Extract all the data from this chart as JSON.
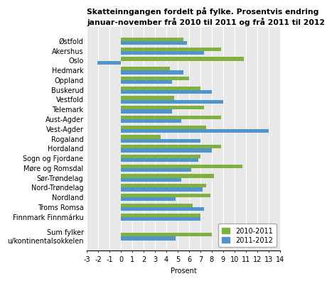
{
  "title": "Skatteinngangen fordelt på fylke. Prosentvis endring\njanuar-november frå 2010 til 2011 og frå 2011 til 2012",
  "categories": [
    "Østfold",
    "Akershus",
    "Oslo",
    "Hedmark",
    "Oppland",
    "Buskerud",
    "Vestfold",
    "Telemark",
    "Aust-Agder",
    "Vest-Agder",
    "Rogaland",
    "Hordaland",
    "Sogn og Fjordane",
    "Møre og Romsdal",
    "Sør-Trøndelag",
    "Nord-Trøndelag",
    "Nordland",
    "Troms Romsa",
    "Finnmark Finnmárku",
    "",
    "Sum fylker\nu/kontinentalsokkelen"
  ],
  "values_2010_2011": [
    5.5,
    8.8,
    10.8,
    4.3,
    6.0,
    7.0,
    4.7,
    7.3,
    8.8,
    7.5,
    3.5,
    8.8,
    7.0,
    10.7,
    8.2,
    7.5,
    7.9,
    6.3,
    7.0,
    null,
    8.0
  ],
  "values_2011_2012": [
    5.8,
    7.3,
    -2.1,
    5.5,
    4.5,
    8.0,
    9.0,
    4.5,
    5.3,
    13.0,
    7.0,
    8.0,
    6.8,
    6.2,
    5.3,
    7.2,
    4.8,
    7.3,
    7.0,
    null,
    4.8
  ],
  "color_2010_2011": "#80b040",
  "color_2011_2012": "#4f94cd",
  "xlabel": "Prosent",
  "xlim": [
    -3,
    14
  ],
  "xticks": [
    -3,
    -2,
    -1,
    0,
    1,
    2,
    3,
    4,
    5,
    6,
    7,
    8,
    9,
    10,
    11,
    12,
    13,
    14
  ],
  "legend_labels": [
    "2010-2011",
    "2011-2012"
  ],
  "background_color": "#e8e8e8",
  "title_fontsize": 7.8,
  "label_fontsize": 7.0,
  "tick_fontsize": 7.0,
  "bar_height": 0.38
}
